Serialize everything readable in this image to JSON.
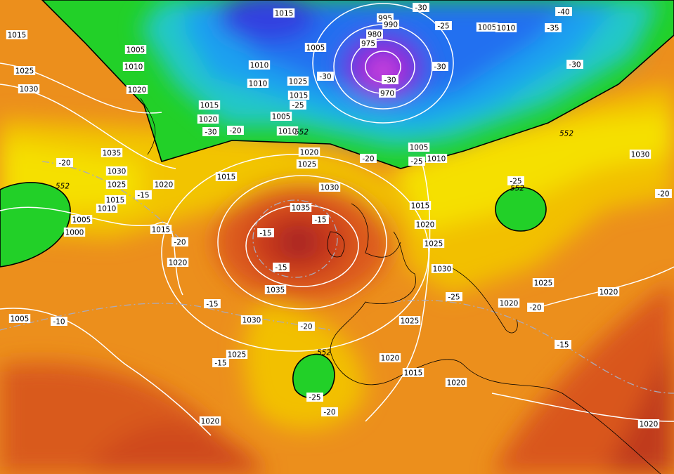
{
  "isobar_labels": [
    1015,
    1005,
    1010,
    1020,
    1025,
    1030,
    1035,
    1030,
    1025,
    1015,
    1010,
    1020,
    1015,
    1005,
    1000,
    1015,
    1020,
    1005,
    1015,
    1010,
    1010,
    1005,
    1025,
    1015,
    1015,
    1020,
    1005,
    1010,
    995,
    990,
    980,
    975,
    970,
    1005,
    1010,
    1020,
    1025,
    1030,
    1035,
    1035,
    1030,
    1025,
    1020,
    1005,
    1010,
    1015,
    1020,
    1025,
    1030,
    1025,
    1020,
    1025,
    1020,
    1015,
    1020,
    1020,
    1030,
    1020
  ],
  "temperature_labels": [
    -30,
    -40,
    -35,
    -30,
    -25,
    -30,
    -30,
    -30,
    -25,
    -30,
    -20,
    -25,
    -20,
    -20,
    -15,
    -20,
    -15,
    -15,
    -15,
    -15,
    -10,
    -20,
    -15,
    -25,
    -20,
    -25,
    -20,
    -15,
    -25,
    -20
  ],
  "thickness_labels": [
    552,
    552,
    552,
    552,
    552
  ]
}
